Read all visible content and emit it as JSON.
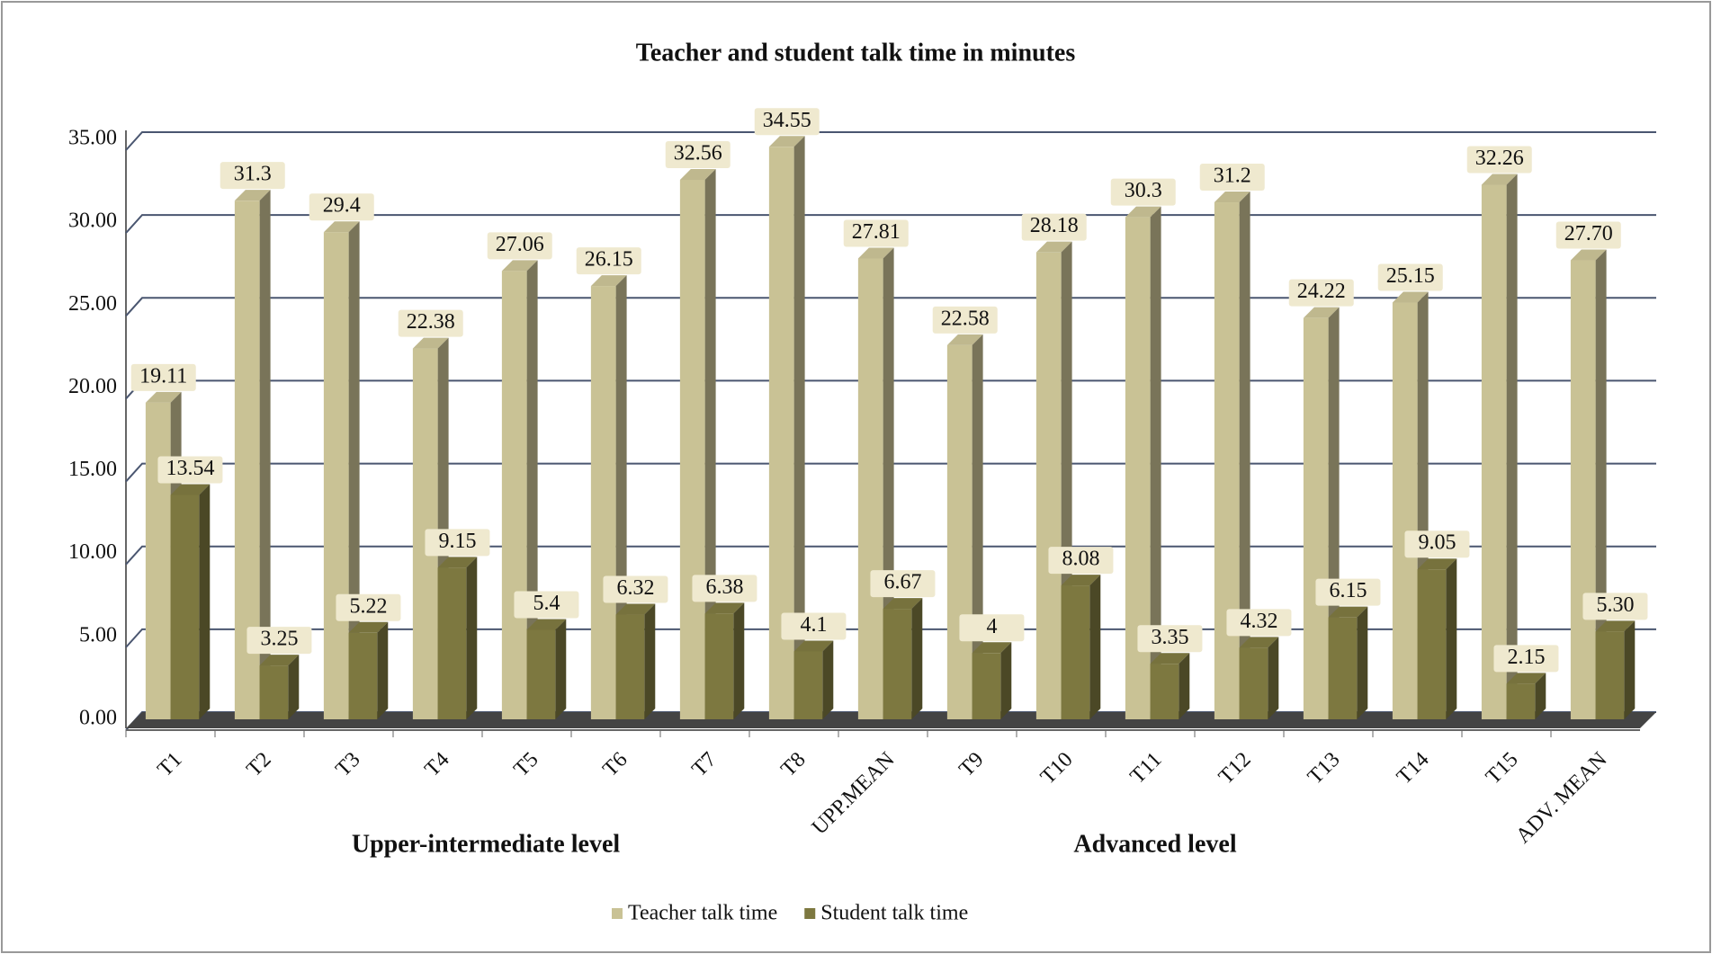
{
  "chart_data": {
    "type": "bar",
    "title": "Teacher and student talk time in minutes",
    "categories": [
      "T1",
      "T2",
      "T3",
      "T4",
      "T5",
      "T6",
      "T7",
      "T8",
      "UPP.MEAN",
      "T9",
      "T10",
      "T11",
      "T12",
      "T13",
      "T14",
      "T15",
      "ADV. MEAN"
    ],
    "group_labels": [
      "Upper-intermediate level",
      "Advanced  level"
    ],
    "series": [
      {
        "name": "Teacher talk time",
        "color": "#c9c295",
        "values": [
          19.11,
          31.3,
          29.4,
          22.38,
          27.06,
          26.15,
          32.56,
          34.55,
          27.81,
          22.58,
          28.18,
          30.3,
          31.2,
          24.22,
          25.15,
          32.26,
          27.7
        ],
        "value_labels": [
          "19.11",
          "31.3",
          "29.4",
          "22.38",
          "27.06",
          "26.15",
          "32.56",
          "34.55",
          "27.81",
          "22.58",
          "28.18",
          "30.3",
          "31.2",
          "24.22",
          "25.15",
          "32.26",
          "27.70"
        ]
      },
      {
        "name": "Student talk time",
        "color": "#7d7840",
        "values": [
          13.54,
          3.25,
          5.22,
          9.15,
          5.4,
          6.32,
          6.38,
          4.1,
          6.67,
          4,
          8.08,
          3.35,
          4.32,
          6.15,
          9.05,
          2.15,
          5.3
        ],
        "value_labels": [
          "13.54",
          "3.25",
          "5.22",
          "9.15",
          "5.4",
          "6.32",
          "6.38",
          "4.1",
          "6.67",
          "4",
          "8.08",
          "3.35",
          "4.32",
          "6.15",
          "9.05",
          "2.15",
          "5.30"
        ]
      }
    ],
    "ylim": [
      0,
      35
    ],
    "yticks": [
      {
        "value": 0,
        "label": "0.00"
      },
      {
        "value": 5,
        "label": "5.00"
      },
      {
        "value": 10,
        "label": "10.00"
      },
      {
        "value": 15,
        "label": "15.00"
      },
      {
        "value": 20,
        "label": "20.00"
      },
      {
        "value": 25,
        "label": "25.00"
      },
      {
        "value": 30,
        "label": "30.00"
      },
      {
        "value": 35,
        "label": "35.00"
      }
    ],
    "grid": true,
    "legend": "bottom"
  }
}
